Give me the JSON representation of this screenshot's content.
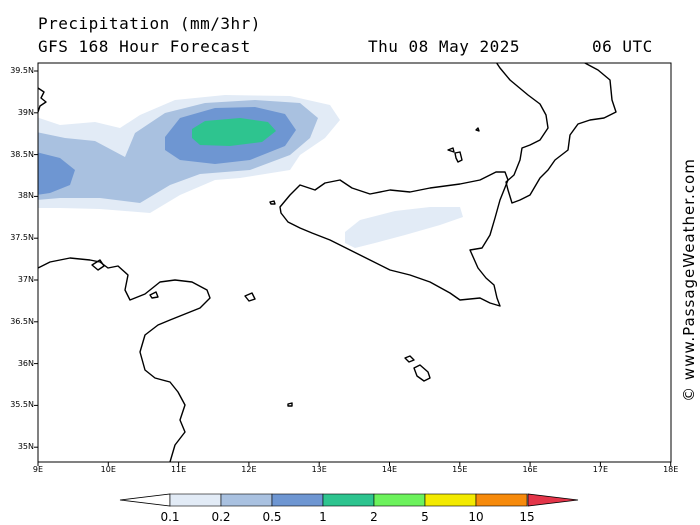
{
  "header": {
    "title": "Precipitation (mm/3hr)",
    "subtitle": "GFS 168 Hour Forecast",
    "date": "Thu 08 May 2025",
    "time": "06 UTC"
  },
  "credit": "© www.PassageWeather.com",
  "axes": {
    "lat_labels": [
      "39.5N",
      "39N",
      "38.5N",
      "38N",
      "37.5N",
      "37N",
      "36.5N",
      "36N",
      "35.5N",
      "35N"
    ],
    "lon_labels": [
      "9E",
      "10E",
      "11E",
      "12E",
      "13E",
      "14E",
      "15E",
      "16E",
      "17E",
      "18E"
    ]
  },
  "legend": {
    "labels": [
      "0.1",
      "0.2",
      "0.5",
      "1",
      "2",
      "5",
      "10",
      "15"
    ],
    "colors": [
      "#e2ebf6",
      "#a9c1e0",
      "#6e96d2",
      "#2ec48f",
      "#6cf25c",
      "#f3ea00",
      "#f68a0c",
      "#e33549"
    ]
  }
}
